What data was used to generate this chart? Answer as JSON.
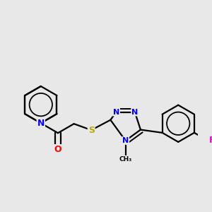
{
  "background_color": "#e8e8e8",
  "bond_color": "#000000",
  "bond_width": 1.6,
  "atom_colors": {
    "N": "#0000ff",
    "O": "#ff0000",
    "S": "#bbaa00",
    "F": "#ff00cc",
    "C": "#000000"
  },
  "font_size": 8,
  "lw": 1.6
}
